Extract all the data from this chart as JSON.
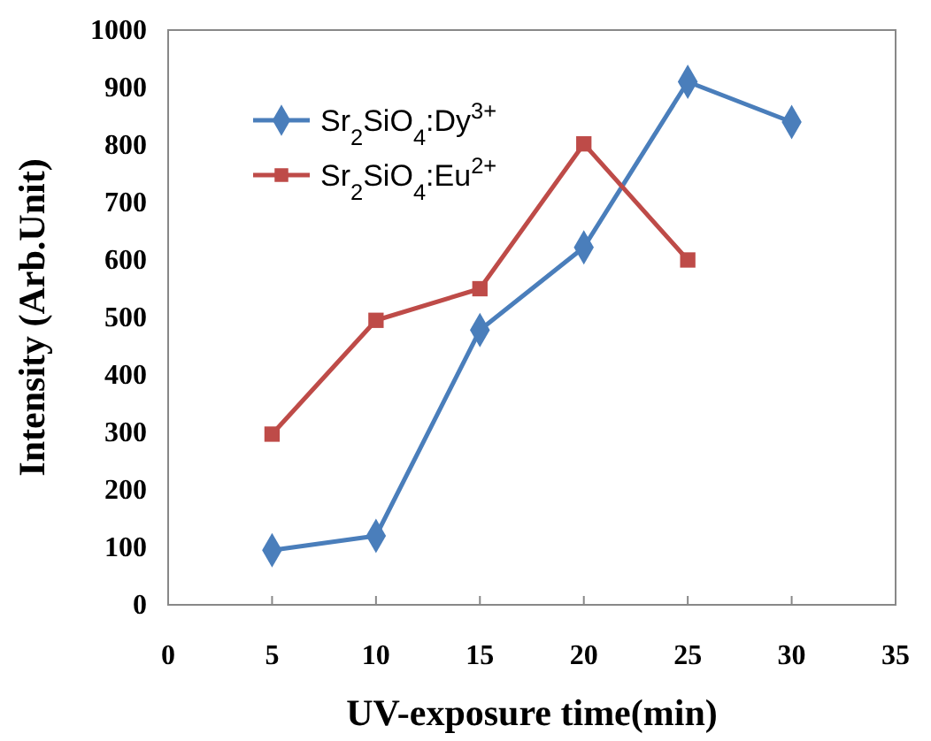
{
  "chart_data": {
    "type": "line",
    "xlabel": "UV-exposure time(min)",
    "ylabel": "Intensity (Arb.Unit)",
    "xlim": [
      0,
      35
    ],
    "xticks": [
      0,
      5,
      10,
      15,
      20,
      25,
      30,
      35
    ],
    "ylim": [
      0,
      1000
    ],
    "yticks": [
      0,
      100,
      200,
      300,
      400,
      500,
      600,
      700,
      800,
      900,
      1000
    ],
    "grid": false,
    "legend": "top left",
    "line_style": "solid",
    "series": [
      {
        "name": "Sr$_{2}$SiO$_{4}$:Dy$^{3+}$",
        "color": "#4a7ebb",
        "marker": "diamond",
        "x": [
          5,
          10,
          15,
          20,
          25,
          30
        ],
        "values": [
          95,
          120,
          478,
          622,
          910,
          840
        ]
      },
      {
        "name": "Sr$_{2}$SiO$_{4}$:Eu$^{2+}$",
        "color": "#be4b48",
        "marker": "square",
        "x": [
          5,
          10,
          15,
          20,
          25
        ],
        "values": [
          297,
          495,
          550,
          802,
          600
        ]
      }
    ]
  }
}
